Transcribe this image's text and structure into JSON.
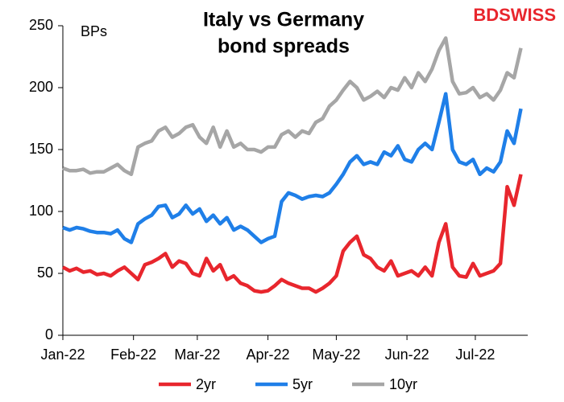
{
  "chart_data": {
    "type": "line",
    "title": [
      "Italy vs Germany",
      "bond spreads"
    ],
    "y_label": "BPs",
    "brand": "BDSWISS",
    "x": [
      0,
      3,
      6,
      9,
      12,
      15,
      18,
      21,
      24,
      27,
      30,
      33,
      36,
      39,
      42,
      45,
      48,
      51,
      54,
      57,
      60,
      63,
      66,
      69,
      72,
      75,
      78,
      81,
      84,
      87,
      90,
      93,
      96,
      99,
      102,
      105,
      108,
      111,
      114,
      117,
      120,
      123,
      126,
      129,
      132,
      135,
      138,
      141,
      144,
      147,
      150,
      153,
      156,
      159,
      162,
      165,
      168,
      171,
      174,
      177,
      180,
      183,
      186,
      189,
      192,
      195,
      198,
      201
    ],
    "xlim": [
      0,
      204
    ],
    "xticks": [
      {
        "value": 0,
        "label": "Jan-22"
      },
      {
        "value": 31,
        "label": "Feb-22"
      },
      {
        "value": 59,
        "label": "Mar-22"
      },
      {
        "value": 90,
        "label": "Apr-22"
      },
      {
        "value": 120,
        "label": "May-22"
      },
      {
        "value": 151,
        "label": "Jun-22"
      },
      {
        "value": 181,
        "label": "Jul-22"
      }
    ],
    "ylim": [
      0,
      250
    ],
    "yticks": [
      0,
      50,
      100,
      150,
      200,
      250
    ],
    "grid": false,
    "legend": "bottom",
    "series": [
      {
        "name": "2yr",
        "color": "#e8262d",
        "values": [
          55,
          52,
          54,
          51,
          52,
          49,
          50,
          48,
          52,
          55,
          50,
          45,
          57,
          59,
          62,
          66,
          55,
          60,
          58,
          50,
          48,
          62,
          52,
          57,
          45,
          48,
          42,
          40,
          36,
          35,
          36,
          40,
          45,
          42,
          40,
          38,
          38,
          35,
          38,
          42,
          48,
          68,
          75,
          80,
          65,
          62,
          55,
          52,
          60,
          48,
          50,
          52,
          48,
          55,
          48,
          75,
          90,
          55,
          48,
          47,
          58,
          48,
          50,
          52,
          58,
          120,
          105,
          130
        ]
      },
      {
        "name": "5yr",
        "color": "#1f7fe8",
        "values": [
          87,
          85,
          87,
          86,
          84,
          83,
          83,
          82,
          85,
          78,
          75,
          90,
          94,
          97,
          104,
          105,
          95,
          98,
          105,
          98,
          102,
          92,
          97,
          90,
          95,
          85,
          88,
          85,
          80,
          75,
          78,
          80,
          108,
          115,
          113,
          110,
          112,
          113,
          112,
          115,
          122,
          130,
          140,
          145,
          138,
          140,
          138,
          148,
          145,
          153,
          142,
          140,
          150,
          155,
          150,
          172,
          195,
          150,
          140,
          138,
          142,
          130,
          135,
          132,
          140,
          165,
          155,
          183
        ]
      },
      {
        "name": "10yr",
        "color": "#a6a6a6",
        "values": [
          135,
          133,
          133,
          134,
          131,
          132,
          132,
          135,
          138,
          133,
          130,
          152,
          155,
          157,
          165,
          168,
          160,
          163,
          168,
          170,
          160,
          155,
          168,
          152,
          165,
          152,
          155,
          150,
          150,
          148,
          152,
          152,
          162,
          165,
          160,
          165,
          163,
          172,
          175,
          185,
          190,
          198,
          205,
          200,
          190,
          193,
          197,
          192,
          200,
          198,
          208,
          200,
          212,
          205,
          215,
          230,
          240,
          205,
          195,
          196,
          200,
          192,
          195,
          190,
          198,
          212,
          208,
          232
        ]
      }
    ]
  }
}
